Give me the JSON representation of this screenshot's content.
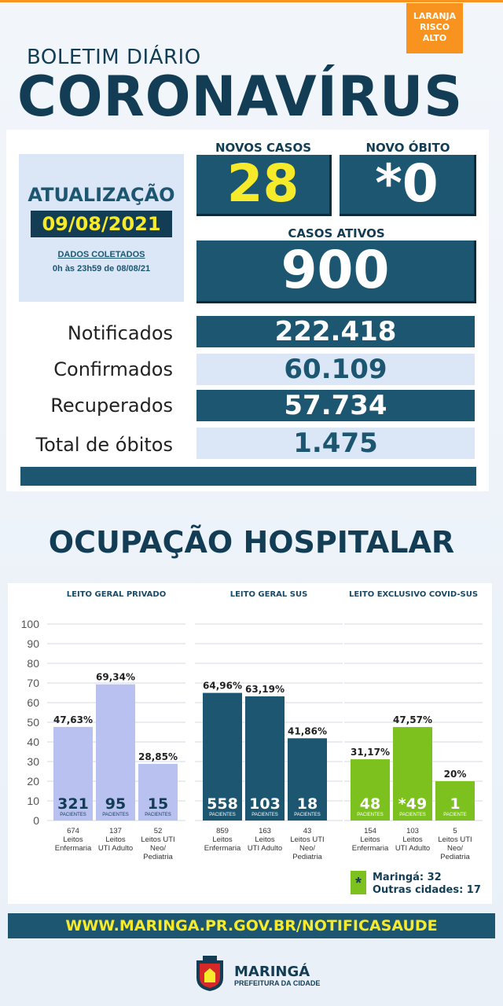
{
  "risk": {
    "lines": [
      "LARANJA",
      "RISCO",
      "ALTO"
    ]
  },
  "header": {
    "subtitle": "BOLETIM DIÁRIO",
    "title": "CORONAVÍRUS"
  },
  "update": {
    "label": "ATUALIZAÇÃO",
    "date": "09/08/2021",
    "collected_label": "DADOS COLETADOS",
    "collected_range": "0h às 23h59 de 08/08/21"
  },
  "highlights": {
    "new_cases_label": "NOVOS CASOS",
    "new_cases_value": "28",
    "new_death_label": "NOVO ÓBITO",
    "new_death_value": "*0",
    "active_label": "CASOS ATIVOS",
    "active_value": "900"
  },
  "totals": [
    {
      "label": "Notificados",
      "value": "222.418"
    },
    {
      "label": "Confirmados",
      "value": "60.109"
    },
    {
      "label": "Recuperados",
      "value": "57.734"
    },
    {
      "label": "Total de óbitos",
      "value": "1.475"
    }
  ],
  "occupation_title": "OCUPAÇÃO HOSPITALAR",
  "chart_data": {
    "type": "bar",
    "ylim": [
      0,
      100
    ],
    "yticks": [
      "100",
      "90",
      "80",
      "70",
      "60",
      "50",
      "40",
      "30",
      "20",
      "10",
      "0"
    ],
    "groups": [
      {
        "name": "LEITO GERAL PRIVADO",
        "color": "#b8c1f0",
        "header_color": "#b8c1f0",
        "header_text_color": "#123d55",
        "bars": [
          {
            "pct": 47.63,
            "pct_label": "47,63%",
            "count": "321",
            "count_sub": "PACIENTES",
            "cat": [
              "674",
              "Leitos",
              "Enfermaria"
            ]
          },
          {
            "pct": 69.34,
            "pct_label": "69,34%",
            "count": "95",
            "count_sub": "PACIENTES",
            "cat": [
              "137",
              "Leitos",
              "UTI Adulto"
            ]
          },
          {
            "pct": 28.85,
            "pct_label": "28,85%",
            "count": "15",
            "count_sub": "PACIENTES",
            "cat": [
              "52",
              "Leitos UTI",
              "Neo/",
              "Pediatria"
            ]
          }
        ]
      },
      {
        "name": "LEITO GERAL SUS",
        "color": "#1c5670",
        "header_color": "#1c5670",
        "header_text_color": "#ffffff",
        "bars": [
          {
            "pct": 64.96,
            "pct_label": "64,96%",
            "count": "558",
            "count_sub": "PACIENTES",
            "cat": [
              "859",
              "Leitos",
              "Enfermaria"
            ]
          },
          {
            "pct": 63.19,
            "pct_label": "63,19%",
            "count": "103",
            "count_sub": "PACIENTES",
            "cat": [
              "163",
              "Leitos",
              "UTI Adulto"
            ]
          },
          {
            "pct": 41.86,
            "pct_label": "41,86%",
            "count": "18",
            "count_sub": "PACIENTES",
            "cat": [
              "43",
              "Leitos UTI",
              "Neo/",
              "Pediatria"
            ]
          }
        ]
      },
      {
        "name": "LEITO EXCLUSIVO COVID-SUS",
        "color": "#7dc11f",
        "header_color": "#7dc11f",
        "header_text_color": "#ffffff",
        "bars": [
          {
            "pct": 31.17,
            "pct_label": "31,17%",
            "count": "48",
            "count_sub": "PACIENTES",
            "cat": [
              "154",
              "Leitos",
              "Enfermaria"
            ]
          },
          {
            "pct": 47.57,
            "pct_label": "47,57%",
            "count": "*49",
            "count_sub": "PACIENTES",
            "cat": [
              "103",
              "Leitos",
              "UTI Adulto"
            ]
          },
          {
            "pct": 20,
            "pct_label": "20%",
            "count": "1",
            "count_sub": "PACIENTE",
            "cat": [
              "5",
              "Leitos UTI",
              "Neo/",
              "Pediatria"
            ]
          }
        ]
      }
    ]
  },
  "legend": {
    "star": "*",
    "line1": "Maringá: 32",
    "line2": "Outras cidades: 17"
  },
  "footer": {
    "url": "WWW.MARINGA.PR.GOV.BR/NOTIFICASAUDE",
    "city": "MARINGÁ",
    "prefeitura": "PREFEITURA DA CIDADE"
  }
}
